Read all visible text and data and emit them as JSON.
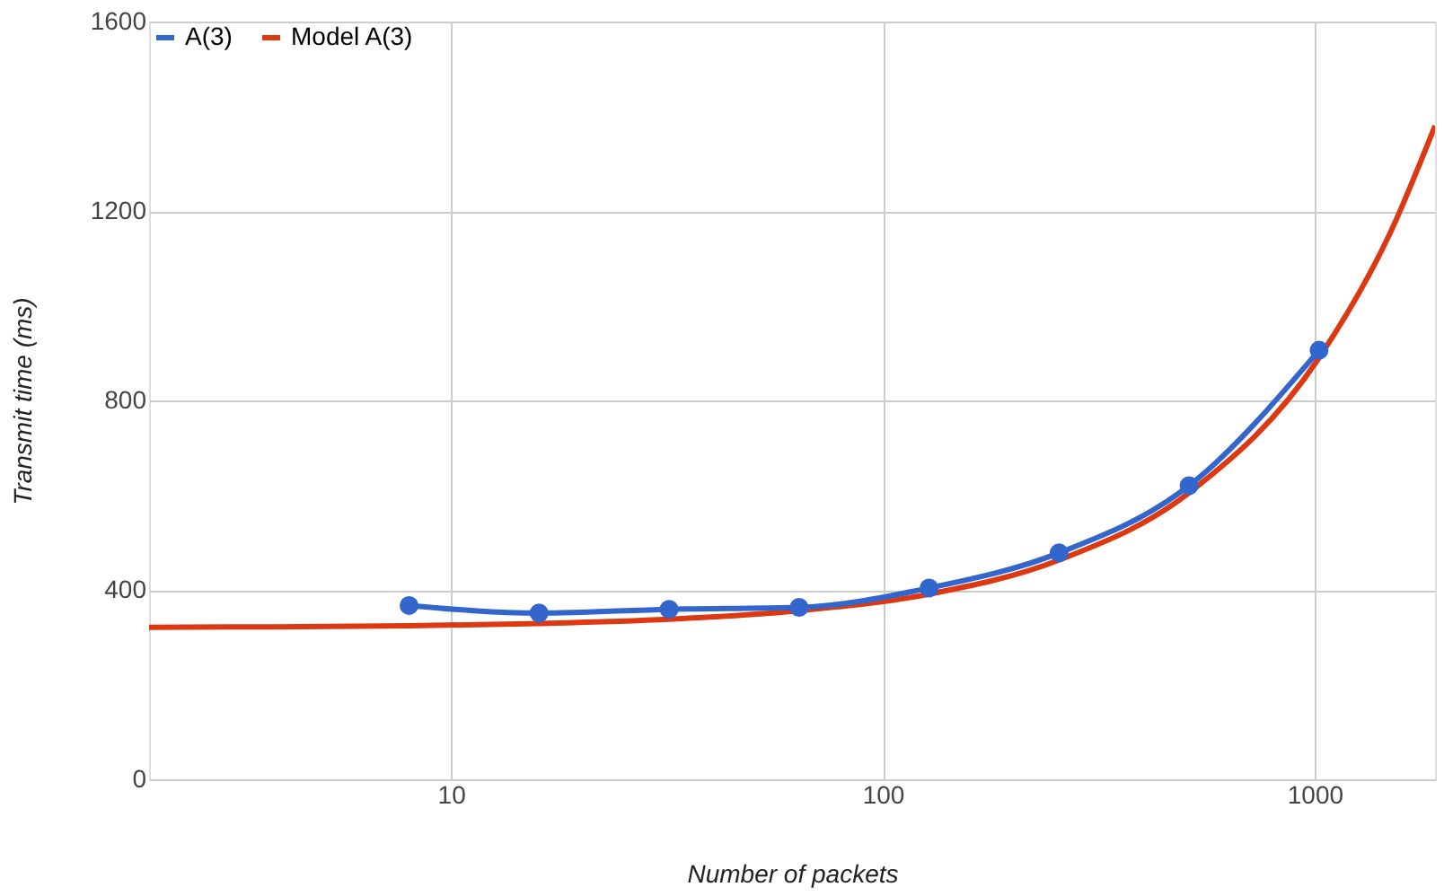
{
  "chart_data": {
    "type": "line",
    "xlabel": "Number of packets",
    "ylabel": "Transmit time (ms)",
    "log": "x",
    "xlim": [
      2,
      1900
    ],
    "xticks": [
      10,
      100,
      1000
    ],
    "ylim": [
      0,
      1600
    ],
    "yticks": [
      0,
      400,
      800,
      1200,
      1600
    ],
    "grid": true,
    "legend": "top left",
    "series": [
      {
        "name": "A(3)",
        "color": "#3366cc",
        "marker": "circle",
        "x": [
          8,
          16,
          32,
          64,
          128,
          256,
          512,
          1024
        ],
        "values": [
          367,
          351,
          359,
          363,
          404,
          478,
          620,
          906
        ]
      },
      {
        "name": "Model A(3)",
        "color": "#dc3912",
        "marker": "none",
        "x": [
          2,
          4,
          8,
          16,
          32,
          64,
          128,
          256,
          512,
          1024,
          1500,
          1900
        ],
        "values": [
          321,
          322,
          324,
          329,
          338,
          356,
          391,
          463,
          605,
          890,
          1156,
          1380
        ]
      }
    ]
  }
}
